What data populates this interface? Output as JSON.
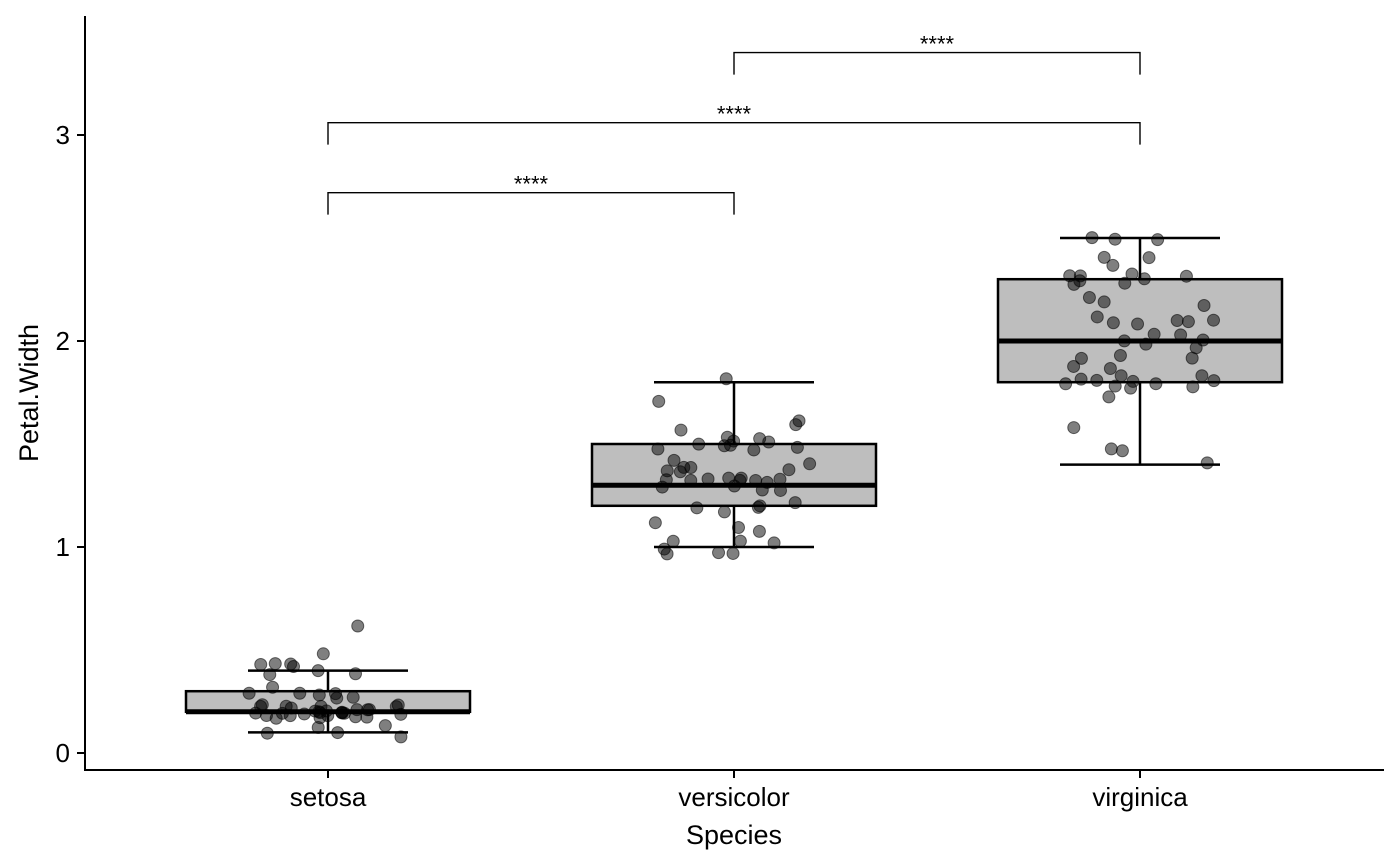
{
  "chart_data": {
    "type": "boxplot",
    "title": "",
    "xlabel": "Species",
    "ylabel": "Petal.Width",
    "categories": [
      "setosa",
      "versicolor",
      "virginica"
    ],
    "ylim": [
      -0.08,
      3.55
    ],
    "yticks": [
      0,
      1,
      2,
      3
    ],
    "grid": false,
    "legend": "none",
    "box_fill": "#bebebe",
    "point_color": "#000000",
    "boxes": [
      {
        "category": "setosa",
        "whisker_low": 0.1,
        "q1": 0.2,
        "median": 0.2,
        "q3": 0.3,
        "whisker_high": 0.4,
        "outliers": [
          0.5,
          0.6
        ]
      },
      {
        "category": "versicolor",
        "whisker_low": 1.0,
        "q1": 1.2,
        "median": 1.3,
        "q3": 1.5,
        "whisker_high": 1.8,
        "outliers": []
      },
      {
        "category": "virginica",
        "whisker_low": 1.4,
        "q1": 1.8,
        "median": 2.0,
        "q3": 2.3,
        "whisker_high": 2.5,
        "outliers": []
      }
    ],
    "points": {
      "setosa": [
        0.2,
        0.2,
        0.2,
        0.2,
        0.2,
        0.4,
        0.3,
        0.2,
        0.2,
        0.1,
        0.2,
        0.2,
        0.1,
        0.1,
        0.2,
        0.4,
        0.4,
        0.3,
        0.3,
        0.3,
        0.2,
        0.4,
        0.2,
        0.5,
        0.2,
        0.2,
        0.4,
        0.2,
        0.2,
        0.2,
        0.2,
        0.4,
        0.1,
        0.2,
        0.2,
        0.2,
        0.2,
        0.1,
        0.2,
        0.2,
        0.3,
        0.3,
        0.2,
        0.6,
        0.4,
        0.3,
        0.2,
        0.2,
        0.2,
        0.2
      ],
      "versicolor": [
        1.4,
        1.5,
        1.5,
        1.3,
        1.5,
        1.3,
        1.6,
        1.0,
        1.3,
        1.4,
        1.0,
        1.5,
        1.0,
        1.4,
        1.3,
        1.4,
        1.5,
        1.0,
        1.5,
        1.1,
        1.8,
        1.3,
        1.5,
        1.2,
        1.3,
        1.4,
        1.4,
        1.7,
        1.5,
        1.0,
        1.1,
        1.0,
        1.2,
        1.6,
        1.5,
        1.6,
        1.5,
        1.3,
        1.3,
        1.3,
        1.2,
        1.4,
        1.2,
        1.0,
        1.3,
        1.2,
        1.3,
        1.3,
        1.1,
        1.3
      ],
      "virginica": [
        2.5,
        1.9,
        2.1,
        1.8,
        2.2,
        2.1,
        1.7,
        1.8,
        1.8,
        2.5,
        2.0,
        1.9,
        2.1,
        2.0,
        2.4,
        2.3,
        1.8,
        2.2,
        2.3,
        1.5,
        2.3,
        2.0,
        2.0,
        1.8,
        2.1,
        1.8,
        1.8,
        1.8,
        2.1,
        1.6,
        1.9,
        2.0,
        2.2,
        1.5,
        1.4,
        2.3,
        2.4,
        1.8,
        1.8,
        2.1,
        2.4,
        2.3,
        1.9,
        2.3,
        2.5,
        2.3,
        1.9,
        2.0,
        2.3,
        1.8
      ]
    },
    "comparisons": [
      {
        "from": "setosa",
        "to": "versicolor",
        "label": "****"
      },
      {
        "from": "setosa",
        "to": "virginica",
        "label": "****"
      },
      {
        "from": "versicolor",
        "to": "virginica",
        "label": "****"
      }
    ]
  }
}
